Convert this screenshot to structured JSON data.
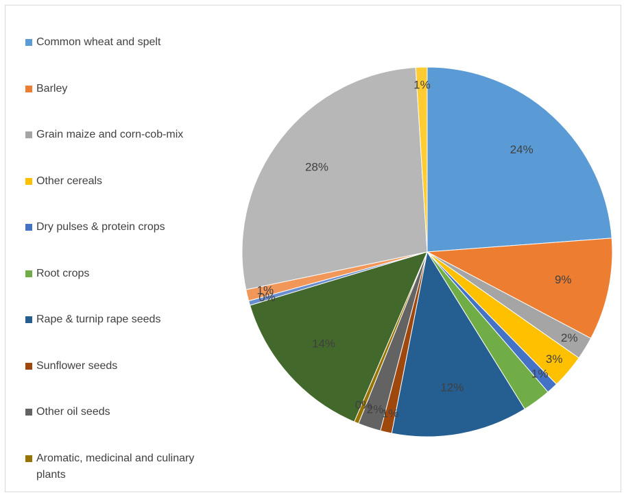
{
  "chart_data": {
    "type": "pie",
    "categories": [
      "Common wheat and spelt",
      "Barley",
      "Grain maize and corn-cob-mix",
      "Other cereals",
      "Dry pulses & protein crops",
      "Root crops",
      "Rape & turnip rape seeds",
      "Sunflower seeds",
      "Other oil seeds",
      "Aromatic, medicinal and culinary plants",
      null,
      null,
      null,
      null,
      null
    ],
    "values": [
      24,
      9,
      2,
      3,
      1,
      2.5,
      12,
      1,
      2,
      0.4,
      14,
      0.4,
      1,
      27.5,
      1
    ],
    "value_labels": [
      "24%",
      "9%",
      "2%",
      "3%",
      "1%",
      null,
      "12%",
      "1%",
      "2%",
      "0%",
      "14%",
      "0%",
      "1%",
      "28%",
      "1%"
    ],
    "colors": [
      "#5b9bd5",
      "#ed7d31",
      "#a5a5a5",
      "#ffc000",
      "#4472c4",
      "#70ad47",
      "#255e91",
      "#9e480e",
      "#636363",
      "#997300",
      "#43682b",
      "#698ed0",
      "#f1975a",
      "#b7b7b7",
      "#ffcd33"
    ]
  }
}
